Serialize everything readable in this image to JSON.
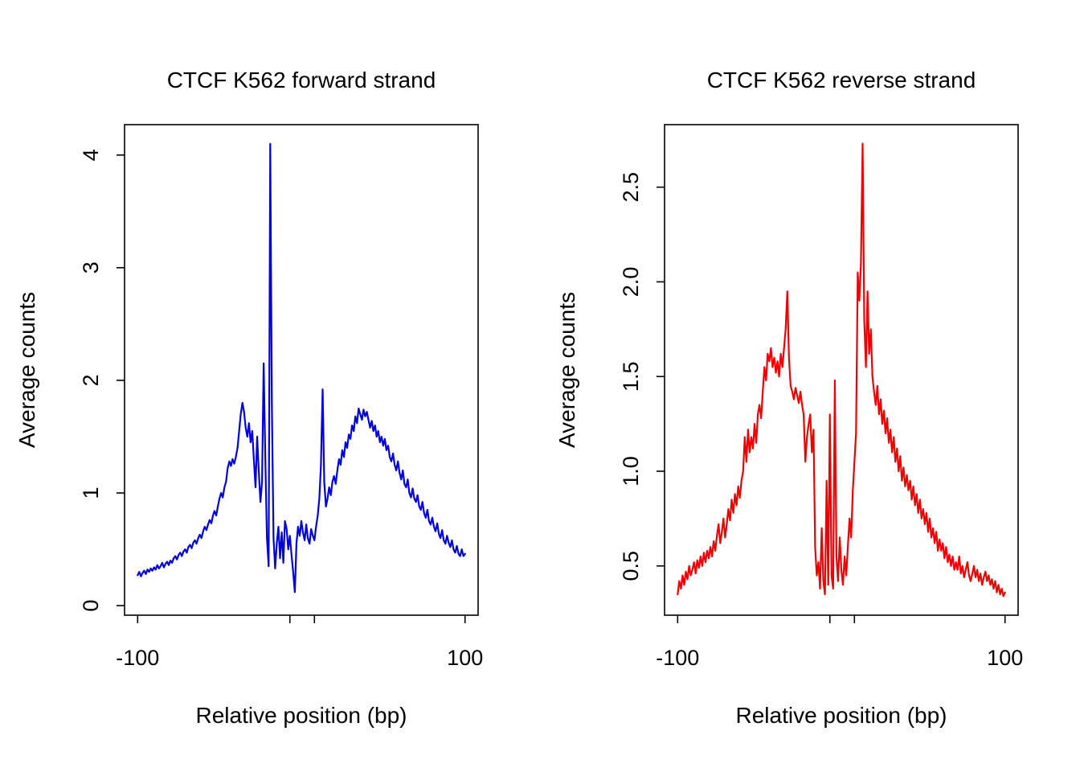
{
  "page": {
    "background": "#ffffff",
    "text_color": "#000000"
  },
  "chart_data": [
    {
      "id": "forward",
      "type": "line",
      "title": "CTCF K562 forward strand",
      "xlabel": "Relative position (bp)",
      "ylabel": "Average counts",
      "line_color": "#0000e0",
      "xlim": [
        -108,
        108
      ],
      "ylim": [
        -0.085,
        4.27
      ],
      "x_range": [
        -100,
        100
      ],
      "x_step": 1,
      "x_ticks": [
        {
          "v": -100,
          "label": "-100"
        },
        {
          "v": -7,
          "label": ""
        },
        {
          "v": 8,
          "label": ""
        },
        {
          "v": 100,
          "label": "100"
        }
      ],
      "y_ticks": [
        {
          "v": 0,
          "label": "0"
        },
        {
          "v": 1,
          "label": "1"
        },
        {
          "v": 2,
          "label": "2"
        },
        {
          "v": 3,
          "label": "3"
        },
        {
          "v": 4,
          "label": "4"
        }
      ],
      "values": [
        0.27,
        0.3,
        0.26,
        0.29,
        0.31,
        0.28,
        0.32,
        0.3,
        0.33,
        0.31,
        0.34,
        0.32,
        0.36,
        0.33,
        0.35,
        0.38,
        0.34,
        0.37,
        0.39,
        0.36,
        0.4,
        0.38,
        0.42,
        0.44,
        0.41,
        0.45,
        0.47,
        0.44,
        0.48,
        0.5,
        0.47,
        0.52,
        0.54,
        0.51,
        0.56,
        0.58,
        0.55,
        0.6,
        0.63,
        0.6,
        0.66,
        0.7,
        0.67,
        0.72,
        0.76,
        0.73,
        0.8,
        0.84,
        0.8,
        0.88,
        0.95,
        1.0,
        0.96,
        1.05,
        1.1,
        1.22,
        1.28,
        1.24,
        1.3,
        1.26,
        1.32,
        1.4,
        1.55,
        1.7,
        1.8,
        1.72,
        1.58,
        1.5,
        1.62,
        1.45,
        1.55,
        1.3,
        1.05,
        1.5,
        1.2,
        0.92,
        1.1,
        2.15,
        1.3,
        0.6,
        0.35,
        4.1,
        1.8,
        0.6,
        0.33,
        0.55,
        0.7,
        0.42,
        0.65,
        0.38,
        0.75,
        0.68,
        0.5,
        0.62,
        0.45,
        0.3,
        0.12,
        0.55,
        0.7,
        0.62,
        0.75,
        0.65,
        0.58,
        0.72,
        0.6,
        0.55,
        0.68,
        0.62,
        0.58,
        0.7,
        0.8,
        0.95,
        1.25,
        1.92,
        1.1,
        0.88,
        0.95,
        1.05,
        0.98,
        1.1,
        1.15,
        1.08,
        1.2,
        1.3,
        1.25,
        1.38,
        1.32,
        1.45,
        1.4,
        1.52,
        1.48,
        1.6,
        1.55,
        1.68,
        1.62,
        1.75,
        1.7,
        1.65,
        1.74,
        1.68,
        1.72,
        1.65,
        1.58,
        1.64,
        1.55,
        1.6,
        1.5,
        1.55,
        1.45,
        1.5,
        1.42,
        1.48,
        1.38,
        1.42,
        1.32,
        1.28,
        1.35,
        1.25,
        1.2,
        1.28,
        1.18,
        1.12,
        1.2,
        1.08,
        1.05,
        1.12,
        1.0,
        0.96,
        1.04,
        0.95,
        0.92,
        0.98,
        0.88,
        0.85,
        0.92,
        0.82,
        0.78,
        0.85,
        0.75,
        0.72,
        0.78,
        0.7,
        0.66,
        0.73,
        0.64,
        0.6,
        0.67,
        0.58,
        0.55,
        0.62,
        0.56,
        0.52,
        0.58,
        0.5,
        0.47,
        0.53,
        0.46,
        0.44,
        0.5,
        0.44,
        0.46
      ]
    },
    {
      "id": "reverse",
      "type": "line",
      "title": "CTCF K562 reverse strand",
      "xlabel": "Relative position (bp)",
      "ylabel": "Average counts",
      "line_color": "#f00000",
      "xlim": [
        -108,
        108
      ],
      "ylim": [
        0.24,
        2.83
      ],
      "x_range": [
        -100,
        100
      ],
      "x_step": 1,
      "x_ticks": [
        {
          "v": -100,
          "label": "-100"
        },
        {
          "v": -7,
          "label": ""
        },
        {
          "v": 8,
          "label": ""
        },
        {
          "v": 100,
          "label": "100"
        }
      ],
      "y_ticks": [
        {
          "v": 0.5,
          "label": "0.5"
        },
        {
          "v": 1.0,
          "label": "1.0"
        },
        {
          "v": 1.5,
          "label": "1.5"
        },
        {
          "v": 2.0,
          "label": "2.0"
        },
        {
          "v": 2.5,
          "label": "2.5"
        }
      ],
      "values": [
        0.35,
        0.42,
        0.38,
        0.45,
        0.4,
        0.47,
        0.43,
        0.5,
        0.45,
        0.48,
        0.52,
        0.46,
        0.53,
        0.49,
        0.55,
        0.5,
        0.57,
        0.52,
        0.58,
        0.54,
        0.6,
        0.55,
        0.63,
        0.58,
        0.66,
        0.72,
        0.62,
        0.68,
        0.75,
        0.65,
        0.72,
        0.8,
        0.74,
        0.85,
        0.78,
        0.88,
        0.82,
        0.92,
        0.86,
        0.95,
        1.0,
        1.18,
        1.05,
        1.22,
        1.1,
        1.18,
        1.12,
        1.25,
        1.15,
        1.3,
        1.35,
        1.28,
        1.42,
        1.55,
        1.48,
        1.62,
        1.58,
        1.65,
        1.55,
        1.6,
        1.52,
        1.58,
        1.5,
        1.62,
        1.55,
        1.65,
        1.75,
        1.95,
        1.6,
        1.45,
        1.42,
        1.38,
        1.44,
        1.4,
        1.36,
        1.42,
        1.35,
        1.3,
        1.05,
        1.18,
        1.25,
        1.3,
        1.1,
        1.22,
        0.6,
        0.45,
        0.52,
        0.38,
        0.7,
        0.42,
        0.35,
        0.95,
        0.4,
        1.3,
        0.45,
        0.38,
        1.48,
        0.55,
        0.42,
        0.65,
        0.48,
        0.4,
        0.55,
        0.45,
        0.6,
        0.75,
        0.65,
        0.9,
        1.05,
        1.2,
        2.05,
        1.9,
        2.1,
        2.73,
        1.8,
        1.55,
        1.95,
        1.62,
        1.75,
        1.5,
        1.42,
        1.35,
        1.45,
        1.3,
        1.38,
        1.25,
        1.32,
        1.2,
        1.28,
        1.15,
        1.22,
        1.1,
        1.18,
        1.05,
        1.12,
        1.0,
        1.08,
        0.95,
        1.02,
        0.92,
        0.98,
        0.9,
        0.95,
        0.85,
        0.92,
        0.82,
        0.88,
        0.78,
        0.85,
        0.75,
        0.8,
        0.72,
        0.78,
        0.68,
        0.75,
        0.65,
        0.7,
        0.62,
        0.68,
        0.58,
        0.64,
        0.58,
        0.62,
        0.54,
        0.6,
        0.52,
        0.56,
        0.5,
        0.55,
        0.48,
        0.52,
        0.48,
        0.55,
        0.46,
        0.5,
        0.44,
        0.48,
        0.52,
        0.45,
        0.42,
        0.46,
        0.5,
        0.44,
        0.48,
        0.42,
        0.46,
        0.4,
        0.44,
        0.47,
        0.42,
        0.45,
        0.4,
        0.43,
        0.38,
        0.42,
        0.36,
        0.4,
        0.35,
        0.38,
        0.34,
        0.36
      ]
    }
  ]
}
